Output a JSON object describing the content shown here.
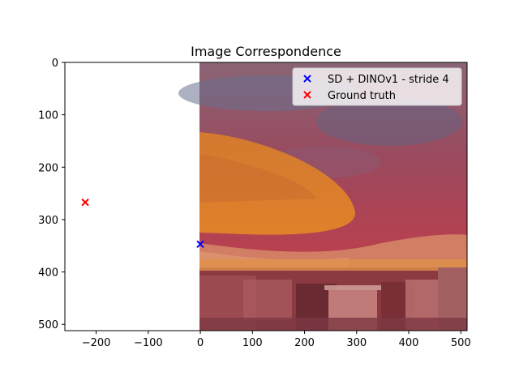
{
  "chart_data": {
    "type": "scatter",
    "title": "Image Correspondence",
    "xlabel": "",
    "ylabel": "",
    "xlim": [
      -260,
      512
    ],
    "ylim": [
      512,
      0
    ],
    "x_ticks": [
      -200,
      -100,
      0,
      100,
      200,
      300,
      400,
      500
    ],
    "y_ticks": [
      0,
      100,
      200,
      300,
      400,
      500
    ],
    "x_tick_labels": [
      "−200",
      "−100",
      "0",
      "100",
      "200",
      "300",
      "400",
      "500"
    ],
    "y_tick_labels": [
      "0",
      "100",
      "200",
      "300",
      "400",
      "500"
    ],
    "grid": false,
    "legend_placement": "top-right",
    "background_image": {
      "description_icon": "cockpit-heatmap-image",
      "extent_x": [
        0,
        512
      ],
      "extent_y": [
        0,
        512
      ]
    },
    "series": [
      {
        "name": "SD + DINOv1 - stride 4",
        "marker": "x",
        "color": "#0000ff",
        "points": [
          {
            "x": 0,
            "y": 347
          }
        ]
      },
      {
        "name": "Ground truth",
        "marker": "x",
        "color": "#ff0000",
        "points": [
          {
            "x": -221,
            "y": 267
          }
        ]
      }
    ]
  }
}
